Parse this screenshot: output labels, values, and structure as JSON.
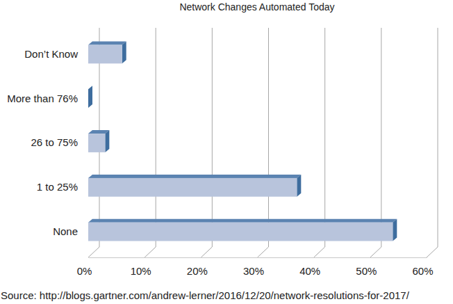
{
  "chart_data": {
    "type": "bar",
    "orientation": "horizontal",
    "title": "Network Changes Automated Today",
    "categories": [
      "Don’t Know",
      "More than 76%",
      "26 to 75%",
      "1 to 25%",
      "None"
    ],
    "values": [
      6,
      0,
      3,
      37,
      54
    ],
    "color": "#b8c4dc",
    "xlim": [
      0,
      60
    ],
    "xticks": [
      {
        "value": 0,
        "label": "0%"
      },
      {
        "value": 10,
        "label": "10%"
      },
      {
        "value": 20,
        "label": "20%"
      },
      {
        "value": 30,
        "label": "30%"
      },
      {
        "value": 40,
        "label": "40%"
      },
      {
        "value": 50,
        "label": "50%"
      },
      {
        "value": 60,
        "label": "60%"
      }
    ],
    "grid": true,
    "source": "Source: http://blogs.gartner.com/andrew-lerner/2016/12/20/network-resolutions-for-2017/"
  }
}
